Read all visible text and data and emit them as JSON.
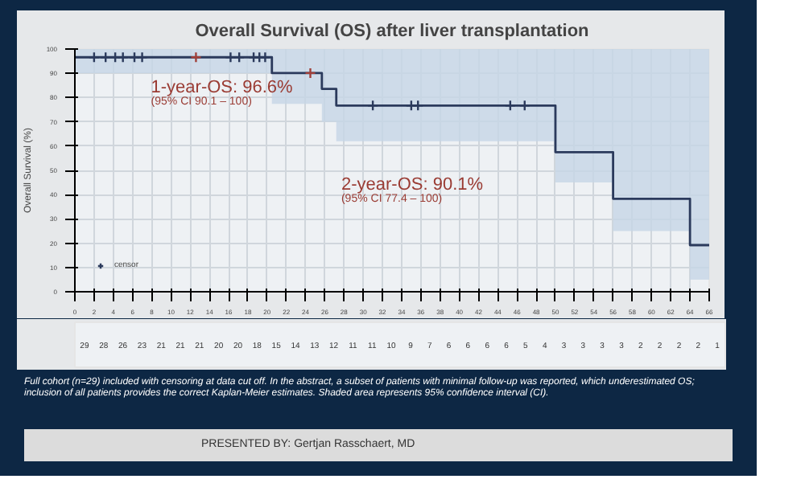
{
  "chart_data": [
    {
      "type": "step",
      "title": "Overall Survival (OS) after liver transplantation",
      "ylabel": "Overall Survival (%)",
      "xlim": [
        0,
        66
      ],
      "xticks": [
        0,
        2,
        4,
        6,
        8,
        10,
        12,
        14,
        16,
        18,
        20,
        22,
        24,
        26,
        28,
        30,
        32,
        34,
        36,
        38,
        40,
        42,
        44,
        46,
        48,
        50,
        52,
        54,
        56,
        58,
        60,
        62,
        64,
        66
      ],
      "ylim": [
        0,
        100
      ],
      "yticks": [
        0,
        10,
        20,
        30,
        40,
        50,
        60,
        70,
        80,
        90,
        100
      ],
      "grid": true,
      "legend": "bottom left",
      "series": [
        {
          "color": "#2b3a5c",
          "x": [
            0,
            20.5,
            25.7,
            27.2,
            50,
            56,
            64,
            66
          ],
          "values": [
            96.6,
            90.1,
            83.6,
            76.7,
            57.5,
            38.3,
            19.2,
            19.2
          ],
          "lower": [
            90.1,
            77.4,
            70,
            62,
            45,
            25,
            5,
            5
          ],
          "upper": [
            100,
            100,
            100,
            100,
            100,
            100,
            100,
            100
          ],
          "line_style": "solid"
        },
        {
          "type": "scatter",
          "name": "censor",
          "color": "#2b3a5c",
          "marker": "cross",
          "x": [
            2,
            3.2,
            4.2,
            5,
            6.2,
            7,
            16.2,
            17.1,
            18.6,
            19.2,
            19.8,
            31,
            35,
            35.7,
            45.3,
            46.8
          ],
          "values": [
            96.6,
            96.6,
            96.6,
            96.6,
            96.6,
            96.6,
            96.6,
            96.6,
            96.6,
            96.6,
            96.6,
            76.7,
            76.7,
            76.7,
            76.7,
            76.7
          ]
        },
        {
          "type": "scatter",
          "color": "#a0403a",
          "marker": "cross",
          "x": [
            12.6,
            24.5
          ],
          "values": [
            96.6,
            90.1
          ]
        }
      ],
      "annotations": [
        "1-year-OS: 96.6%",
        "(95% CI 90.1 – 100)",
        "2-year-OS: 90.1%",
        "(95% CI 77.4 – 100)"
      ]
    },
    {
      "type": "other",
      "categories": [
        null,
        null,
        null,
        null,
        null,
        null,
        null,
        null,
        null,
        null,
        null,
        null,
        null,
        null,
        null,
        null,
        null,
        null,
        null,
        null,
        null,
        null,
        null,
        null,
        null,
        null,
        null,
        null,
        null,
        null,
        null,
        null,
        null,
        null
      ],
      "values": [
        29,
        28,
        26,
        23,
        21,
        21,
        21,
        20,
        20,
        18,
        15,
        14,
        13,
        12,
        11,
        11,
        10,
        9,
        7,
        6,
        6,
        6,
        6,
        5,
        4,
        3,
        3,
        3,
        3,
        2,
        2,
        2,
        2,
        1
      ],
      "data_labels": true,
      "annotations": [
        "Full cohort (n=29) included with censoring at data cut off. In the abstract, a subset of patients with minimal follow-up was reported, which underestimated OS; inclusion of all patients provides the correct Kaplan-Meier estimates. Shaded area represents 95% confidence interval (CI).",
        "PRESENTED BY: Gertjan Rasschaert, MD"
      ]
    }
  ]
}
